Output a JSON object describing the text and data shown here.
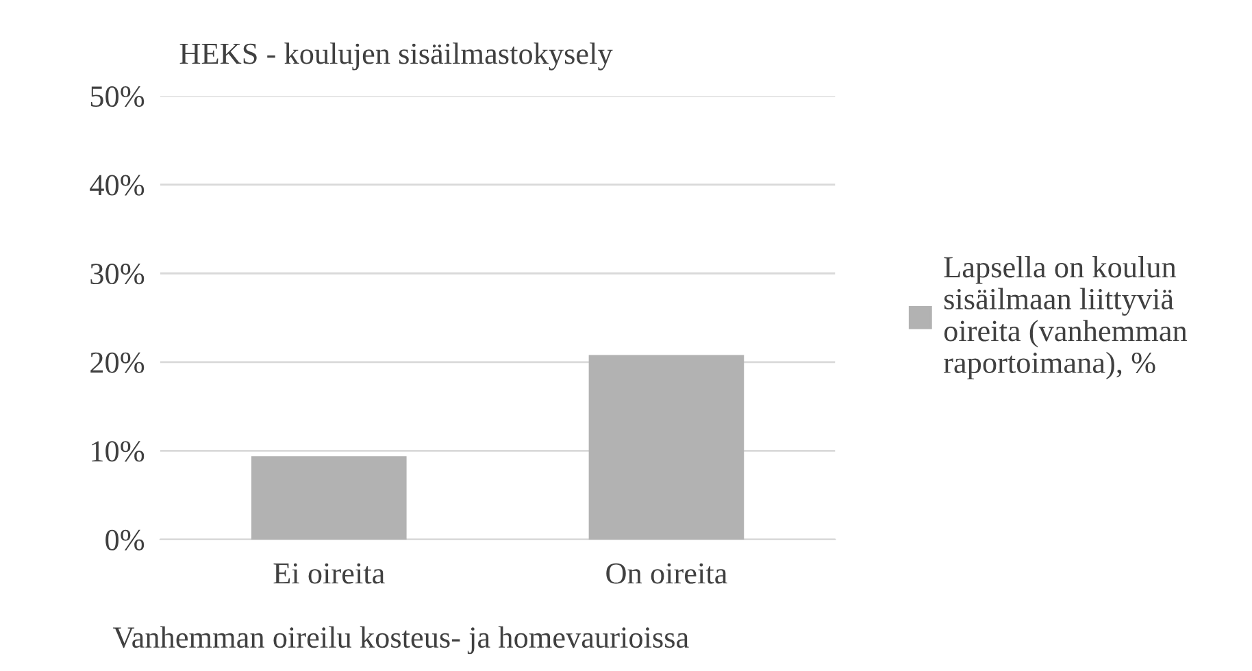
{
  "chart_data": {
    "type": "bar",
    "title": "HEKS - koulujen sisäilmastokysely",
    "xlabel": "Vanhemman oireilu kosteus- ja homevaurioissa",
    "categories": [
      "Ei oireita",
      "On oireita"
    ],
    "series": [
      {
        "name": "Lapsella on koulun\nsisäilmaan liittyviä\noireita (vanhemman\nraportoimana), %",
        "color": "#b2b2b2",
        "values": [
          9.4,
          20.8
        ]
      }
    ],
    "ylim": [
      0,
      50
    ],
    "yticks": [
      {
        "value": 0,
        "label": "0%"
      },
      {
        "value": 10,
        "label": "10%"
      },
      {
        "value": 20,
        "label": "20%"
      },
      {
        "value": 30,
        "label": "30%"
      },
      {
        "value": 40,
        "label": "40%"
      },
      {
        "value": 50,
        "label": "50%"
      }
    ],
    "grid": "y",
    "legend": "right"
  }
}
